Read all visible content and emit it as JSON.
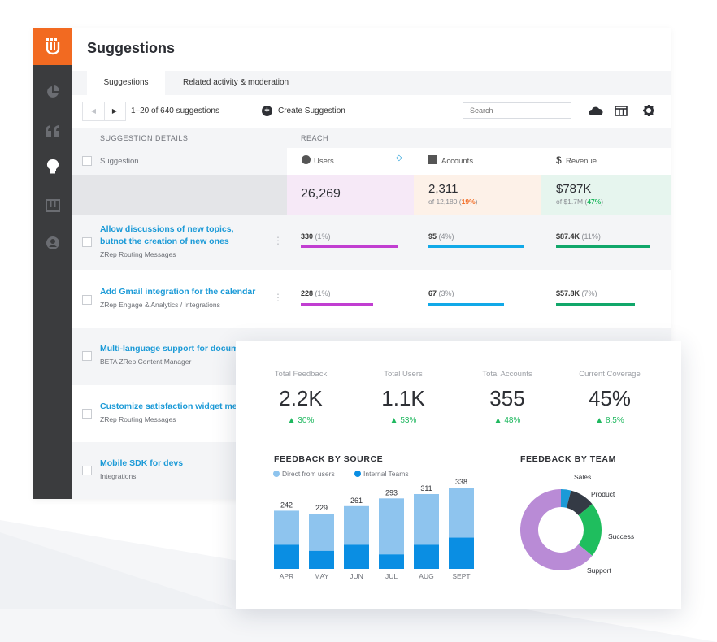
{
  "app": {
    "title": "Suggestions",
    "tabs": [
      {
        "label": "Suggestions",
        "active": true
      },
      {
        "label": "Related activity & moderation",
        "active": false
      }
    ],
    "toolbar": {
      "pagination_text": "1–20 of 640 suggestions",
      "create_label": "Create Suggestion",
      "search_placeholder": "Search"
    },
    "columns": {
      "group_details": "SUGGESTION DETAILS",
      "group_reach": "REACH",
      "suggestion": "Suggestion",
      "users": "Users",
      "accounts": "Accounts",
      "revenue": "Revenue"
    },
    "totals": {
      "users": "26,269",
      "accounts": "2,311",
      "accounts_sub_prefix": "of 12,180 (",
      "accounts_sub_pct": "19%",
      "revenue": "$787K",
      "revenue_sub_prefix": "of $1.7M (",
      "revenue_sub_pct": "47%",
      "close_paren": ")"
    },
    "rows": [
      {
        "title_line1": "Allow discussions of new topics,",
        "title_line2": "butnot the creation of new ones",
        "sub": "ZRep Routing Messages",
        "users": "330",
        "users_pct": "(1%)",
        "accounts": "95",
        "accounts_pct": "(4%)",
        "revenue": "$87.4K",
        "revenue_pct": "(11%)",
        "users_bar": 0.96,
        "accounts_bar": 0.94,
        "revenue_bar": 0.93
      },
      {
        "title_line1": "Add Gmail integration for the calendar",
        "title_line2": "",
        "sub": "ZRep Engage & Analytics / Integrations",
        "users": "228",
        "users_pct": "(1%)",
        "accounts": "67",
        "accounts_pct": "(3%)",
        "revenue": "$57.8K",
        "revenue_pct": "(7%)",
        "users_bar": 0.72,
        "accounts_bar": 0.75,
        "revenue_bar": 0.78
      },
      {
        "title_line1": "Multi-language support for docume",
        "title_line2": "",
        "sub": "BETA ZRep Content Manager"
      },
      {
        "title_line1": "Customize satisfaction widget mes",
        "title_line2": "",
        "sub": "ZRep Routing Messages"
      },
      {
        "title_line1": "Mobile SDK for devs",
        "title_line2": "",
        "sub": "Integrations"
      }
    ],
    "colors": {
      "orange": "#f26a21",
      "users": "#c13ed1",
      "accounts": "#11a9e8",
      "revenue": "#11a76a"
    }
  },
  "dashboard": {
    "kpis": [
      {
        "label": "Total Feedback",
        "value": "2.2K",
        "delta": "▲ 30%"
      },
      {
        "label": "Total Users",
        "value": "1.1K",
        "delta": "▲ 53%"
      },
      {
        "label": "Total Accounts",
        "value": "355",
        "delta": "▲ 48%"
      },
      {
        "label": "Current Coverage",
        "value": "45%",
        "delta": "▲ 8.5%"
      }
    ],
    "source_title": "FEEDBACK BY SOURCE",
    "team_title": "FEEDBACK BY TEAM",
    "legend": [
      {
        "label": "Direct from users",
        "color": "#8ec4ee"
      },
      {
        "label": "Internal Teams",
        "color": "#0a8ee3"
      }
    ]
  },
  "chart_data": [
    {
      "type": "bar",
      "title": "FEEDBACK BY SOURCE",
      "categories": [
        "APR",
        "MAY",
        "JUN",
        "JUL",
        "AUG",
        "SEPT"
      ],
      "totals": [
        242,
        229,
        261,
        293,
        311,
        338
      ],
      "series": [
        {
          "name": "Internal Teams",
          "values": [
            100,
            75,
            100,
            60,
            100,
            130
          ]
        },
        {
          "name": "Direct from users",
          "values": [
            142,
            154,
            161,
            233,
            211,
            208
          ]
        }
      ],
      "stacked": true
    },
    {
      "type": "pie",
      "title": "FEEDBACK BY TEAM",
      "labels": [
        "Sales",
        "Product",
        "Success",
        "Support"
      ],
      "values": [
        4,
        10,
        22,
        64
      ],
      "colors": [
        "#1b9ad7",
        "#343a45",
        "#1fbe5e",
        "#b98bd6"
      ]
    }
  ]
}
